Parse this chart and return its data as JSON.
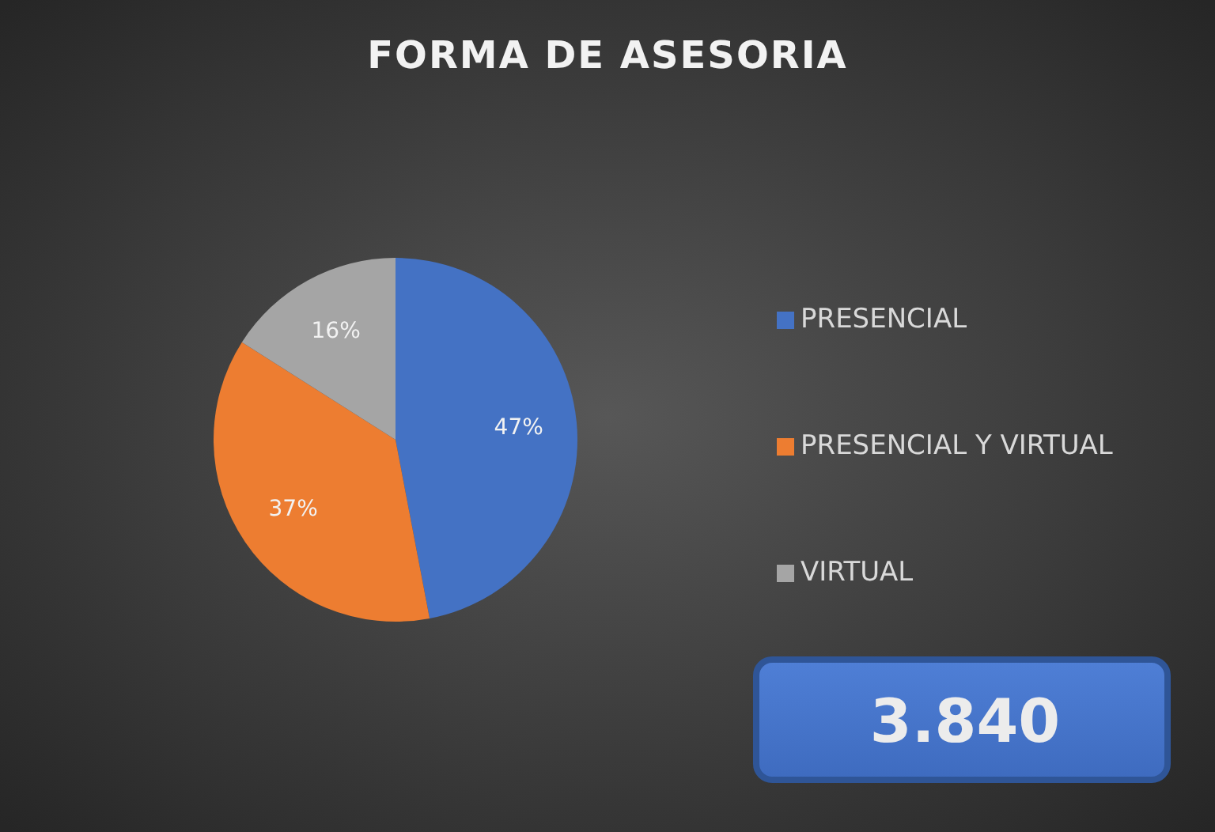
{
  "chart_data": {
    "type": "pie",
    "title": "FORMA DE ASESORIA",
    "categories": [
      "PRESENCIAL",
      "PRESENCIAL Y VIRTUAL",
      "VIRTUAL"
    ],
    "values": [
      47,
      37,
      16
    ],
    "colors": [
      "#4472c4",
      "#ed7d31",
      "#a5a5a5"
    ],
    "value_labels": [
      "47%",
      "37%",
      "16%"
    ],
    "legend": "right",
    "annotations": [
      "3.840"
    ]
  }
}
